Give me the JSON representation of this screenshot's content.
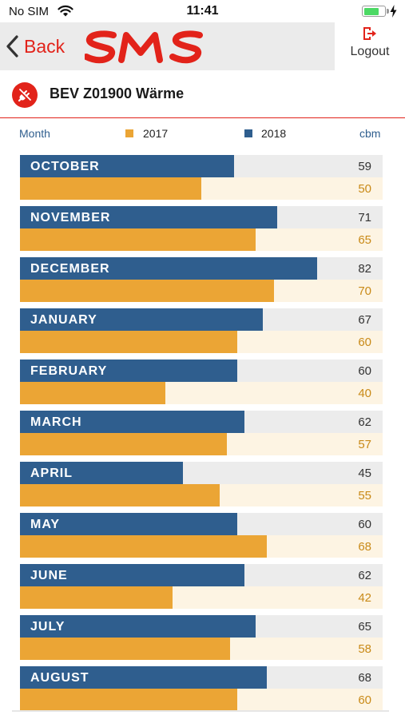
{
  "status_bar": {
    "carrier": "No SIM",
    "time": "11:41",
    "battery_level": 0.75,
    "charging": true
  },
  "nav": {
    "back_label": "Back",
    "logo_text": "SMS",
    "logout_label": "Logout"
  },
  "meter": {
    "title": "BEV Z01900 Wärme",
    "icon": "meter-plug-icon"
  },
  "legend": {
    "month_label": "Month",
    "series_2017": "2017",
    "series_2018": "2018",
    "unit": "cbm"
  },
  "colors": {
    "accent": "#e2231a",
    "series_2018": "#2f5e8e",
    "series_2017": "#eba535",
    "track_2018": "#ececec",
    "track_2017": "#fdf4e3"
  },
  "chart_data": {
    "type": "bar",
    "orientation": "horizontal",
    "unit": "cbm",
    "xlim": [
      0,
      100
    ],
    "categories": [
      "OCTOBER",
      "NOVEMBER",
      "DECEMBER",
      "JANUARY",
      "FEBRUARY",
      "MARCH",
      "APRIL",
      "MAY",
      "JUNE",
      "JULY",
      "AUGUST"
    ],
    "series": [
      {
        "name": "2018",
        "values": [
          59,
          71,
          82,
          67,
          60,
          62,
          45,
          60,
          62,
          65,
          68
        ]
      },
      {
        "name": "2017",
        "values": [
          50,
          65,
          70,
          60,
          40,
          57,
          55,
          68,
          42,
          58,
          60
        ]
      }
    ],
    "legend": "top"
  }
}
